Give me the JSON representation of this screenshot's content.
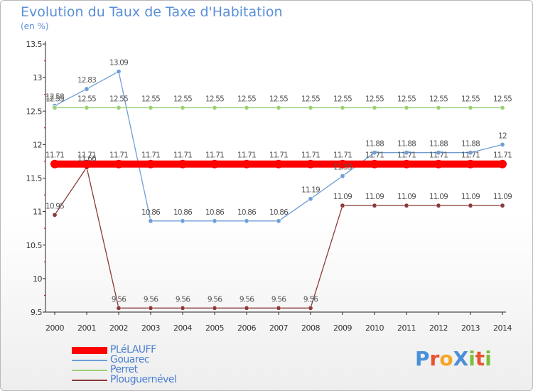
{
  "title": "Evolution du Taux de Taxe d'Habitation",
  "subtitle": "(en %)",
  "logo": {
    "text": "ProXiti",
    "letter_colors": [
      "#4a90d9",
      "#e8522f",
      "#f5a623",
      "#4a90d9",
      "#7bbf3a",
      "#e8522f",
      "#7bbf3a"
    ]
  },
  "chart_data": {
    "type": "line",
    "title": "Evolution du Taux de Taxe d'Habitation",
    "ylabel": "(en %)",
    "xlabel": "",
    "x": [
      "2000",
      "2001",
      "2002",
      "2003",
      "2004",
      "2005",
      "2006",
      "2007",
      "2008",
      "2009",
      "2010",
      "2011",
      "2012",
      "2013",
      "2014"
    ],
    "ylim": [
      9.5,
      13.5
    ],
    "yticks": [
      "9.5",
      "10",
      "10.5",
      "11",
      "11.5",
      "12",
      "12.5",
      "13",
      "13.5"
    ],
    "grid": false,
    "legend_position": "bottom-left",
    "series": [
      {
        "name": "PLéLAUFF",
        "color": "#ff0000",
        "values": [
          11.71,
          11.71,
          11.71,
          11.71,
          11.71,
          11.71,
          11.71,
          11.71,
          11.71,
          11.71,
          11.71,
          11.71,
          11.71,
          11.71,
          11.71
        ],
        "labels": [
          "11.71",
          "11.71",
          "11.71",
          "11.71",
          "11.71",
          "11.71",
          "11.71",
          "11.71",
          "11.71",
          "11.71",
          "11.71",
          "11.71",
          "11.71",
          "11.71",
          "11.71"
        ]
      },
      {
        "name": "Gouarec",
        "color": "#6d9fd6",
        "values": [
          12.58,
          12.83,
          13.09,
          10.86,
          10.86,
          10.86,
          10.86,
          10.86,
          11.19,
          11.53,
          11.88,
          11.88,
          11.88,
          11.88,
          12
        ],
        "labels": [
          "12.58",
          "12.83",
          "13.09",
          "10.86",
          "10.86",
          "10.86",
          "10.86",
          "10.86",
          "11.19",
          "11.53",
          "11.88",
          "11.88",
          "11.88",
          "11.88",
          "12"
        ]
      },
      {
        "name": "Perret",
        "color": "#99d276",
        "values": [
          12.55,
          12.55,
          12.55,
          12.55,
          12.55,
          12.55,
          12.55,
          12.55,
          12.55,
          12.55,
          12.55,
          12.55,
          12.55,
          12.55,
          12.55
        ],
        "labels": [
          "12.55",
          "12.55",
          "12.55",
          "12.55",
          "12.55",
          "12.55",
          "12.55",
          "12.55",
          "12.55",
          "12.55",
          "12.55",
          "12.55",
          "12.55",
          "12.55",
          "12.55"
        ]
      },
      {
        "name": "Plouguernével",
        "color": "#8a3a3a",
        "values": [
          10.95,
          11.66,
          9.56,
          9.56,
          9.56,
          9.56,
          9.56,
          9.56,
          9.56,
          11.09,
          11.09,
          11.09,
          11.09,
          11.09,
          11.09
        ],
        "labels": [
          "10.95",
          "11.66",
          "9.56",
          "9.56",
          "9.56",
          "9.56",
          "9.56",
          "9.56",
          "9.56",
          "11.09",
          "11.09",
          "11.09",
          "11.09",
          "11.09",
          "11.09"
        ]
      }
    ]
  }
}
